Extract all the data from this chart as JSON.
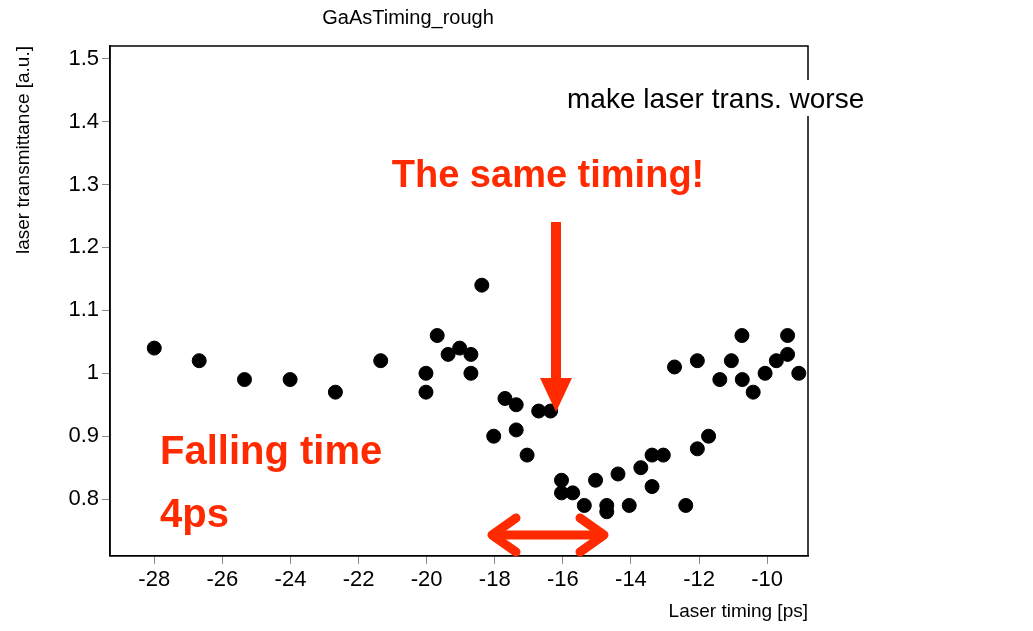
{
  "chart_data": {
    "type": "scatter",
    "title": "GaAsTiming_rough",
    "xlabel": "Laser timing [ps]",
    "ylabel": "laser transmittance [a.u.]",
    "annotations": [
      "make laser trans. worse",
      "The same timing!",
      "Falling time",
      "4ps"
    ],
    "series": [
      {
        "color": "#000000",
        "x": [
          -28,
          -26.68,
          -25.35,
          -24.01,
          -22.68,
          -21.35,
          -20.02,
          -20.02,
          -19.69,
          -19.37,
          -19.03,
          -18.7,
          -18.7,
          -18.38,
          -18.03,
          -17.7,
          -17.37,
          -17.37,
          -17.05,
          -16.71,
          -16.36,
          -16.04,
          -16.04,
          -15.71,
          -15.37,
          -15.04,
          -14.71,
          -14.71,
          -14.38,
          -14.05,
          -13.71,
          -13.38,
          -13.38,
          -13.05,
          -12.72,
          -12.39,
          -12.05,
          -12.05,
          -11.72,
          -11.39,
          -11.05,
          -10.74,
          -10.73,
          -10.41,
          -10.06,
          -9.73,
          -9.4,
          -9.4,
          -9.07
        ],
        "values": [
          1.04,
          1.02,
          0.99,
          0.99,
          0.97,
          1.02,
          1.0,
          0.97,
          1.06,
          1.03,
          1.04,
          1.03,
          1.0,
          1.14,
          0.9,
          0.96,
          0.95,
          0.91,
          0.87,
          0.94,
          0.94,
          0.83,
          0.81,
          0.81,
          0.79,
          0.83,
          0.79,
          0.78,
          0.84,
          0.79,
          0.85,
          0.87,
          0.82,
          0.87,
          1.01,
          0.79,
          1.02,
          0.88,
          0.9,
          0.99,
          1.02,
          1.06,
          0.99,
          0.97,
          1.0,
          1.02,
          1.06,
          1.03,
          1.0
        ]
      }
    ],
    "xlim": [
      -29.3,
      -8.8
    ],
    "xticks": [
      -28,
      -26,
      -24,
      -22,
      -20,
      -18,
      -16,
      -14,
      -12,
      -10
    ],
    "ylim": [
      0.71,
      1.52
    ],
    "yticks": [
      0.8,
      0.9,
      {
        "value": 1,
        "label": "1"
      },
      1.1,
      1.2,
      1.3,
      1.4,
      1.5
    ],
    "marker": "circle",
    "grid": false,
    "legend": false
  }
}
